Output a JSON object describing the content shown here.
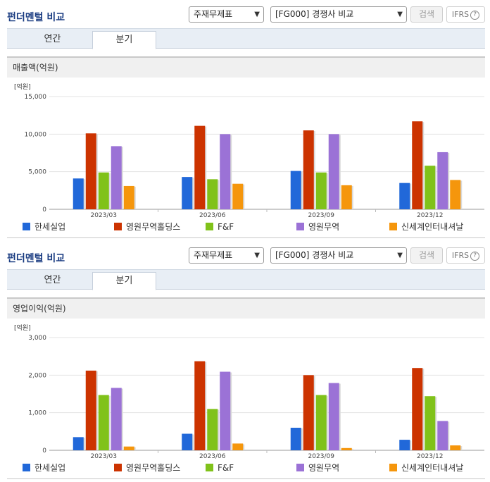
{
  "panels": [
    {
      "title": "펀더멘털 비교",
      "select_type": "주재무제표",
      "select_compare": "[FG000] 경쟁사 비교",
      "search_label": "검색",
      "ifrs_label": "IFRS",
      "help_glyph": "?",
      "tab_annual": "연간",
      "tab_quarter": "분기",
      "metric_label": "매출액(억원)"
    },
    {
      "title": "펀더멘털 비교",
      "select_type": "주재무제표",
      "select_compare": "[FG000] 경쟁사 비교",
      "search_label": "검색",
      "ifrs_label": "IFRS",
      "help_glyph": "?",
      "tab_annual": "연간",
      "tab_quarter": "분기",
      "metric_label": "영업이익(억원)"
    }
  ],
  "chart_data": [
    {
      "type": "bar",
      "ylabel": "[억원]",
      "ylim": [
        0,
        15000
      ],
      "yticks": [
        "0",
        "5,000",
        "10,000",
        "15,000"
      ],
      "ytick_values": [
        0,
        5000,
        10000,
        15000
      ],
      "categories": [
        "2023/03",
        "2023/06",
        "2023/09",
        "2023/12"
      ],
      "series": [
        {
          "name": "한세실업",
          "color": "#2168d9",
          "values": [
            4100,
            4300,
            5100,
            3500
          ]
        },
        {
          "name": "영원무역홀딩스",
          "color": "#cc3300",
          "values": [
            10100,
            11100,
            10500,
            11700
          ]
        },
        {
          "name": "F&F",
          "color": "#80c21a",
          "values": [
            4900,
            4000,
            4900,
            5800
          ]
        },
        {
          "name": "영원무역",
          "color": "#9b72d6",
          "values": [
            8400,
            10000,
            10000,
            7600
          ]
        },
        {
          "name": "신세계인터내셔날",
          "color": "#f5960c",
          "values": [
            3100,
            3400,
            3200,
            3900
          ]
        }
      ],
      "grid": true,
      "legend_position": "bottom"
    },
    {
      "type": "bar",
      "ylabel": "[억원]",
      "ylim": [
        0,
        3000
      ],
      "yticks": [
        "0",
        "1,000",
        "2,000",
        "3,000"
      ],
      "ytick_values": [
        0,
        1000,
        2000,
        3000
      ],
      "categories": [
        "2023/03",
        "2023/06",
        "2023/09",
        "2023/12"
      ],
      "series": [
        {
          "name": "한세실업",
          "color": "#2168d9",
          "values": [
            350,
            440,
            600,
            280
          ]
        },
        {
          "name": "영원무역홀딩스",
          "color": "#cc3300",
          "values": [
            2120,
            2370,
            2000,
            2190
          ]
        },
        {
          "name": "F&F",
          "color": "#80c21a",
          "values": [
            1470,
            1100,
            1470,
            1440
          ]
        },
        {
          "name": "영원무역",
          "color": "#9b72d6",
          "values": [
            1660,
            2090,
            1790,
            780
          ]
        },
        {
          "name": "신세계인터내셔날",
          "color": "#f5960c",
          "values": [
            100,
            180,
            60,
            130
          ]
        }
      ],
      "grid": true,
      "legend_position": "bottom"
    }
  ]
}
